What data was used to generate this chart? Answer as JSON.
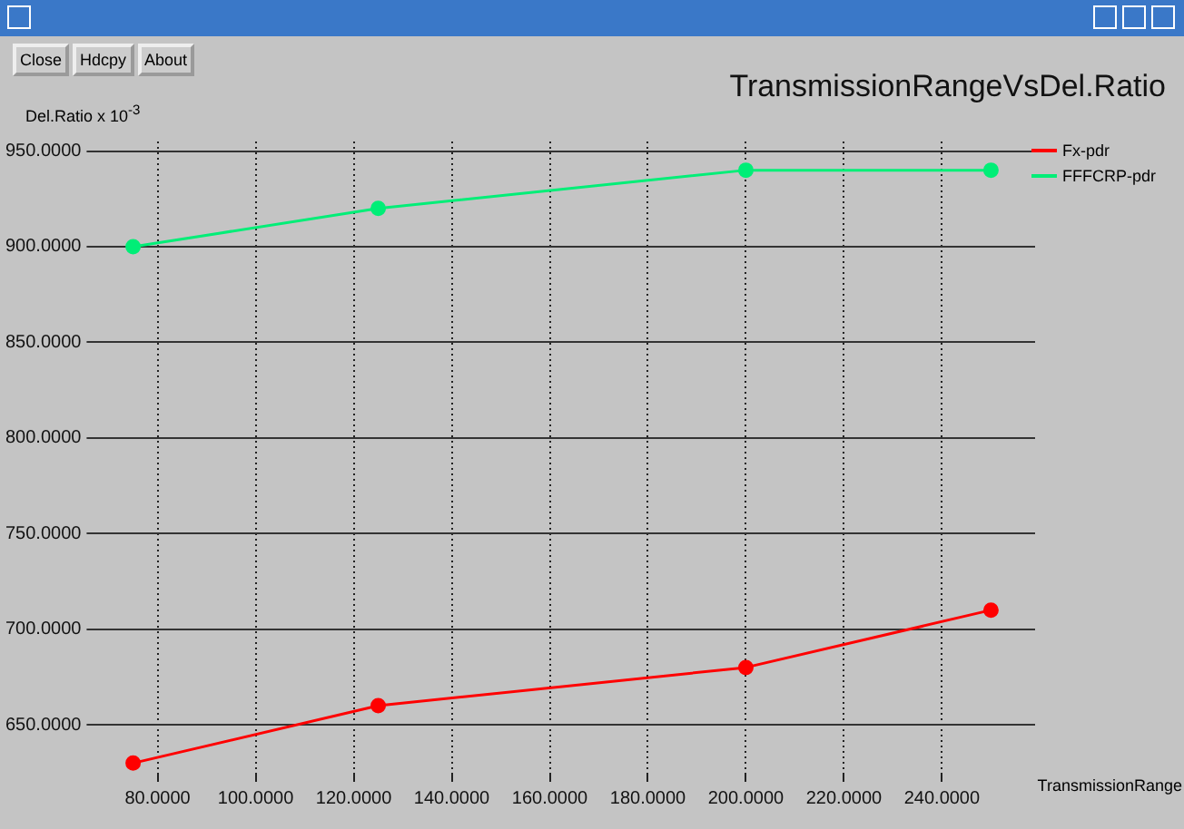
{
  "chart_data": {
    "type": "line",
    "title": "TransmissionRangeVsDel.Ratio",
    "xlabel": "TransmissionRange",
    "ylabel": "Del.Ratio x 10$^{-3}$",
    "annotations": [
      "Close",
      "Hdcpy",
      "About"
    ],
    "x": [
      75,
      125,
      200,
      250
    ],
    "series": [
      {
        "name": "Fx-pdr",
        "color": "#ff0000",
        "values": [
          630,
          660,
          680,
          710
        ]
      },
      {
        "name": "FFFCRP-pdr",
        "color": "#00ee77",
        "values": [
          900,
          920,
          940,
          940
        ]
      }
    ],
    "xlim": [
      67,
      259
    ],
    "ylim": [
      624,
      955
    ],
    "xticks": [
      {
        "value": 80,
        "label": "80.0000"
      },
      {
        "value": 100,
        "label": "100.0000"
      },
      {
        "value": 120,
        "label": "120.0000"
      },
      {
        "value": 140,
        "label": "140.0000"
      },
      {
        "value": 160,
        "label": "160.0000"
      },
      {
        "value": 180,
        "label": "180.0000"
      },
      {
        "value": 200,
        "label": "200.0000"
      },
      {
        "value": 220,
        "label": "220.0000"
      },
      {
        "value": 240,
        "label": "240.0000"
      }
    ],
    "yticks": [
      {
        "value": 650,
        "label": "650.0000"
      },
      {
        "value": 700,
        "label": "700.0000"
      },
      {
        "value": 750,
        "label": "750.0000"
      },
      {
        "value": 800,
        "label": "800.0000"
      },
      {
        "value": 850,
        "label": "850.0000"
      },
      {
        "value": 900,
        "label": "900.0000"
      },
      {
        "value": 950,
        "label": "950.0000"
      }
    ],
    "grid": true,
    "legend": "top right",
    "marker": "circle",
    "line_style": "solid"
  }
}
